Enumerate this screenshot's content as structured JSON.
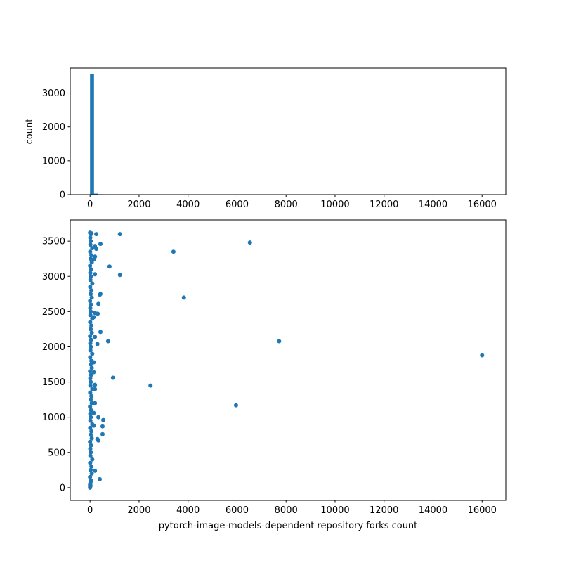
{
  "chart_data": [
    {
      "type": "bar",
      "subtype": "histogram",
      "xlabel": "",
      "ylabel": "count",
      "xlim": [
        -808,
        16968
      ],
      "ylim": [
        0,
        3738
      ],
      "xticks": [
        0,
        2000,
        4000,
        6000,
        8000,
        10000,
        12000,
        14000,
        16000
      ],
      "yticks": [
        0,
        1000,
        2000,
        3000
      ],
      "bin_start": 0,
      "bin_width": 161.6,
      "counts": [
        3560,
        30,
        12,
        4,
        2,
        1,
        0,
        2,
        0,
        0,
        0,
        0,
        0,
        0,
        0,
        1,
        0,
        0,
        0,
        0,
        0,
        1,
        0,
        1,
        0,
        0,
        0,
        0,
        0,
        0,
        0,
        0,
        0,
        0,
        0,
        0,
        1,
        0,
        0,
        0,
        1,
        0,
        0,
        0,
        0,
        0,
        0,
        1,
        0,
        0,
        0,
        0,
        0,
        0,
        0,
        0,
        0,
        0,
        0,
        0,
        0,
        0,
        0,
        0,
        0,
        0,
        0,
        0,
        0,
        0,
        0,
        0,
        0,
        0,
        0,
        0,
        0,
        0,
        0,
        0,
        0,
        0,
        0,
        0,
        0,
        0,
        0,
        0,
        0,
        0,
        0,
        0,
        0,
        0,
        0,
        0,
        0,
        0,
        0,
        1
      ],
      "color": "#1f77b4",
      "grid": false
    },
    {
      "type": "scatter",
      "xlabel": "pytorch-image-models-dependent repository forks count",
      "ylabel": "",
      "xlim": [
        -808,
        16968
      ],
      "ylim": [
        -181,
        3801
      ],
      "xticks": [
        0,
        2000,
        4000,
        6000,
        8000,
        10000,
        12000,
        14000,
        16000
      ],
      "yticks": [
        0,
        500,
        1000,
        1500,
        2000,
        2500,
        3000,
        3500
      ],
      "color": "#1f77b4",
      "grid": false,
      "points": [
        [
          255,
          3600
        ],
        [
          1220,
          3600
        ],
        [
          425,
          3460
        ],
        [
          255,
          3390
        ],
        [
          200,
          3430
        ],
        [
          3404,
          3350
        ],
        [
          6525,
          3480
        ],
        [
          794,
          3140
        ],
        [
          1220,
          3020
        ],
        [
          200,
          3030
        ],
        [
          425,
          2750
        ],
        [
          400,
          2740
        ],
        [
          3830,
          2700
        ],
        [
          340,
          2610
        ],
        [
          312,
          2470
        ],
        [
          200,
          2480
        ],
        [
          425,
          2210
        ],
        [
          738,
          2080
        ],
        [
          7716,
          2080
        ],
        [
          300,
          2040
        ],
        [
          16000,
          1880
        ],
        [
          936,
          1560
        ],
        [
          2468,
          1450
        ],
        [
          200,
          1400
        ],
        [
          200,
          1460
        ],
        [
          5957,
          1170
        ],
        [
          200,
          1200
        ],
        [
          340,
          1000
        ],
        [
          540,
          960
        ],
        [
          510,
          870
        ],
        [
          510,
          760
        ],
        [
          340,
          670
        ],
        [
          300,
          690
        ],
        [
          200,
          240
        ],
        [
          397,
          120
        ],
        [
          150,
          1780
        ],
        [
          150,
          1640
        ],
        [
          200,
          2140
        ],
        [
          150,
          2420
        ],
        [
          150,
          3240
        ],
        [
          200,
          3280
        ],
        [
          150,
          1060
        ],
        [
          150,
          880
        ],
        [
          0,
          0
        ],
        [
          10,
          50
        ],
        [
          40,
          100
        ],
        [
          0,
          150
        ],
        [
          70,
          200
        ],
        [
          25,
          250
        ],
        [
          55,
          300
        ],
        [
          5,
          350
        ],
        [
          90,
          400
        ],
        [
          15,
          450
        ],
        [
          30,
          500
        ],
        [
          10,
          550
        ],
        [
          40,
          600
        ],
        [
          0,
          650
        ],
        [
          70,
          700
        ],
        [
          25,
          750
        ],
        [
          55,
          800
        ],
        [
          5,
          850
        ],
        [
          90,
          900
        ],
        [
          15,
          950
        ],
        [
          30,
          1000
        ],
        [
          10,
          1050
        ],
        [
          40,
          1100
        ],
        [
          0,
          1150
        ],
        [
          70,
          1200
        ],
        [
          25,
          1250
        ],
        [
          55,
          1300
        ],
        [
          5,
          1350
        ],
        [
          90,
          1400
        ],
        [
          15,
          1450
        ],
        [
          30,
          1500
        ],
        [
          10,
          1550
        ],
        [
          40,
          1600
        ],
        [
          0,
          1650
        ],
        [
          70,
          1700
        ],
        [
          25,
          1750
        ],
        [
          55,
          1800
        ],
        [
          5,
          1850
        ],
        [
          90,
          1900
        ],
        [
          15,
          1950
        ],
        [
          30,
          2000
        ],
        [
          10,
          2050
        ],
        [
          40,
          2100
        ],
        [
          0,
          2150
        ],
        [
          70,
          2200
        ],
        [
          25,
          2250
        ],
        [
          55,
          2300
        ],
        [
          5,
          2350
        ],
        [
          90,
          2400
        ],
        [
          15,
          2450
        ],
        [
          30,
          2500
        ],
        [
          10,
          2550
        ],
        [
          40,
          2600
        ],
        [
          0,
          2650
        ],
        [
          70,
          2700
        ],
        [
          25,
          2750
        ],
        [
          55,
          2800
        ],
        [
          5,
          2850
        ],
        [
          90,
          2900
        ],
        [
          15,
          2950
        ],
        [
          30,
          3000
        ],
        [
          10,
          3050
        ],
        [
          40,
          3100
        ],
        [
          0,
          3150
        ],
        [
          70,
          3200
        ],
        [
          25,
          3250
        ],
        [
          55,
          3300
        ],
        [
          5,
          3350
        ],
        [
          90,
          3400
        ],
        [
          15,
          3450
        ],
        [
          30,
          3500
        ],
        [
          10,
          3550
        ],
        [
          40,
          3600
        ],
        [
          60,
          3610
        ],
        [
          0,
          3620
        ],
        [
          20,
          25
        ],
        [
          20,
          75
        ],
        [
          0,
          20
        ],
        [
          0,
          40
        ]
      ]
    }
  ]
}
